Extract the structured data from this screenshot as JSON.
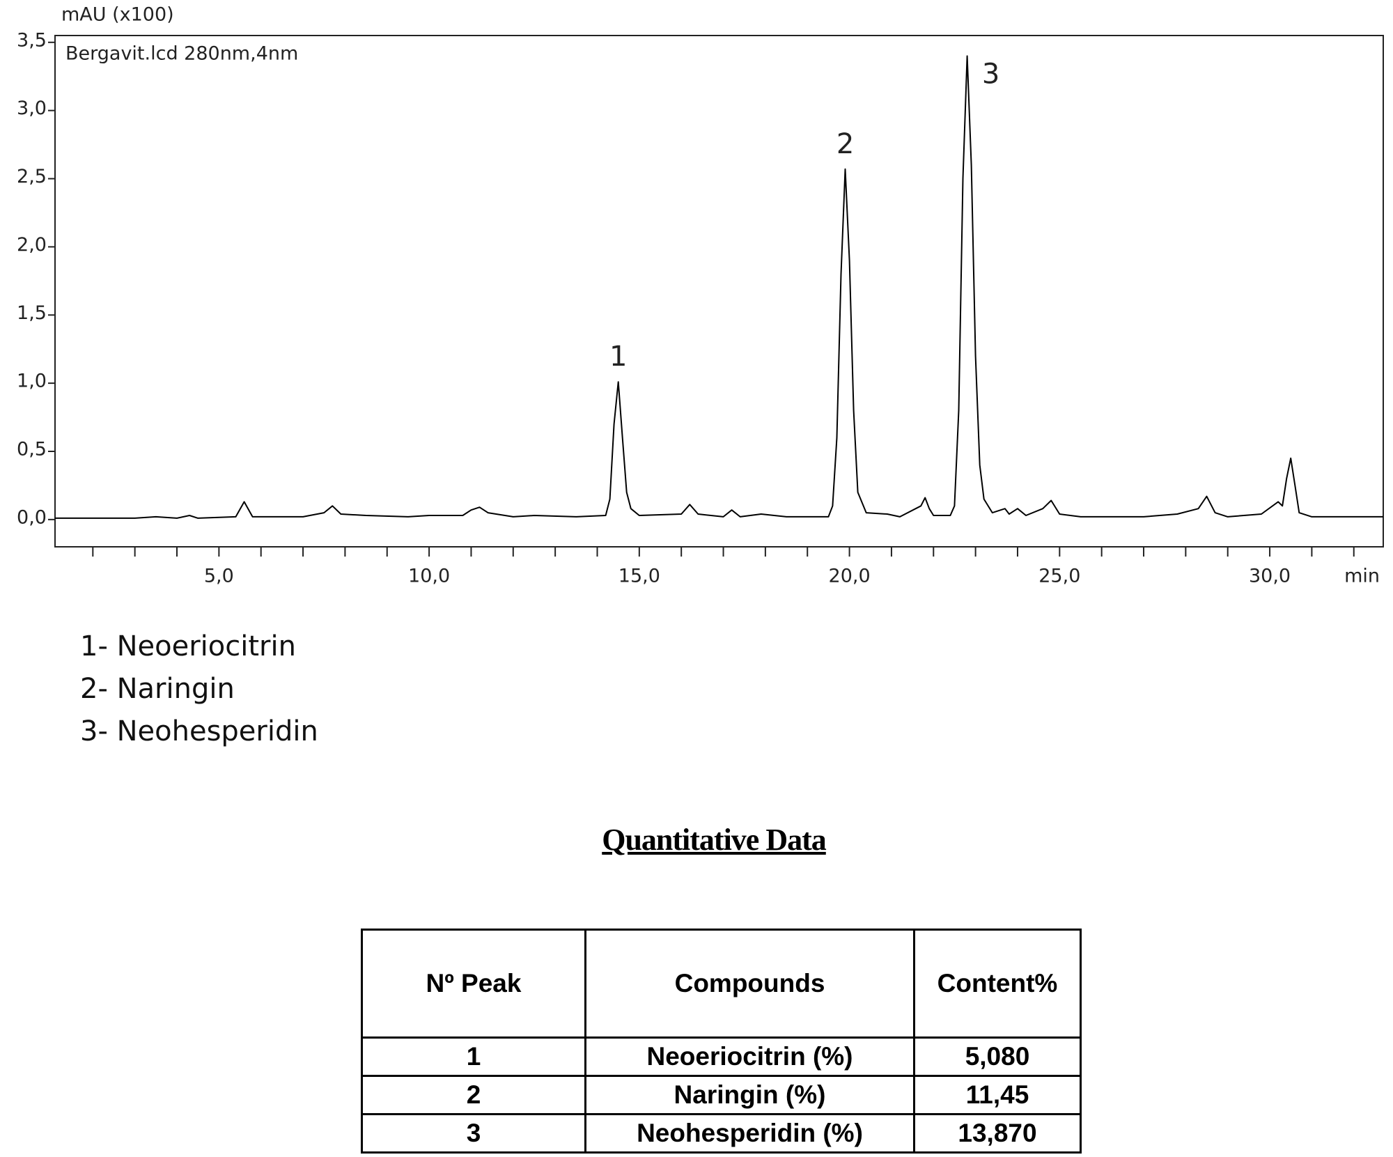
{
  "chart_data": {
    "type": "line",
    "ylabel": "mAU (x100)",
    "xlabel": "min",
    "note": "Bergavit.lcd 280nm,4nm",
    "color": "#000000",
    "x": [
      1.1,
      2.0,
      3.0,
      3.5,
      4.0,
      4.3,
      4.5,
      5.4,
      5.6,
      5.8,
      7.0,
      7.5,
      7.7,
      7.9,
      8.5,
      9.5,
      10.0,
      10.8,
      11.0,
      11.2,
      11.4,
      12.0,
      12.5,
      13.5,
      14.2,
      14.3,
      14.4,
      14.5,
      14.6,
      14.7,
      14.8,
      15.0,
      16.0,
      16.2,
      16.4,
      17.0,
      17.2,
      17.4,
      17.9,
      18.5,
      19.5,
      19.6,
      19.7,
      19.8,
      19.9,
      20.0,
      20.1,
      20.2,
      20.4,
      20.9,
      21.2,
      21.7,
      21.8,
      21.9,
      22.0,
      22.4,
      22.5,
      22.6,
      22.7,
      22.8,
      22.9,
      23.0,
      23.1,
      23.2,
      23.4,
      23.7,
      23.8,
      24.0,
      24.2,
      24.6,
      24.8,
      25.0,
      25.5,
      27.0,
      27.8,
      28.3,
      28.5,
      28.7,
      29.0,
      29.8,
      30.2,
      30.3,
      30.4,
      30.5,
      30.6,
      30.7,
      31.0,
      32.7
    ],
    "values": [
      0.01,
      0.01,
      0.01,
      0.02,
      0.01,
      0.03,
      0.01,
      0.02,
      0.13,
      0.02,
      0.02,
      0.05,
      0.1,
      0.04,
      0.03,
      0.02,
      0.03,
      0.03,
      0.07,
      0.09,
      0.05,
      0.02,
      0.03,
      0.02,
      0.03,
      0.15,
      0.7,
      1.01,
      0.6,
      0.2,
      0.08,
      0.03,
      0.04,
      0.11,
      0.04,
      0.02,
      0.07,
      0.02,
      0.04,
      0.02,
      0.02,
      0.1,
      0.6,
      1.8,
      2.57,
      1.9,
      0.8,
      0.2,
      0.05,
      0.04,
      0.02,
      0.1,
      0.16,
      0.08,
      0.03,
      0.03,
      0.1,
      0.8,
      2.5,
      3.4,
      2.6,
      1.2,
      0.4,
      0.15,
      0.05,
      0.08,
      0.04,
      0.08,
      0.03,
      0.08,
      0.14,
      0.04,
      0.02,
      0.02,
      0.04,
      0.08,
      0.17,
      0.05,
      0.02,
      0.04,
      0.13,
      0.1,
      0.3,
      0.45,
      0.25,
      0.05,
      0.02,
      0.02
    ],
    "xlim": [
      1.1,
      32.7
    ],
    "ylim": [
      -0.2,
      3.55
    ],
    "xticks": [
      {
        "value": 5,
        "label": "5,0"
      },
      {
        "value": 10,
        "label": "10,0"
      },
      {
        "value": 15,
        "label": "15,0"
      },
      {
        "value": 20,
        "label": "20,0"
      },
      {
        "value": 25,
        "label": "25,0"
      },
      {
        "value": 30,
        "label": "30,0"
      }
    ],
    "xminor_ticks": [
      2,
      3,
      4,
      6,
      7,
      8,
      9,
      11,
      12,
      13,
      14,
      16,
      17,
      18,
      19,
      21,
      22,
      23,
      24,
      26,
      27,
      28,
      29,
      31,
      32
    ],
    "yticks": [
      {
        "value": 0,
        "label": "0,0"
      },
      {
        "value": 0.5,
        "label": "0,5"
      },
      {
        "value": 1,
        "label": "1,0"
      },
      {
        "value": 1.5,
        "label": "1,5"
      },
      {
        "value": 2,
        "label": "2,0"
      },
      {
        "value": 2.5,
        "label": "2,5"
      },
      {
        "value": 3,
        "label": "3,0"
      },
      {
        "value": 3.5,
        "label": "3,5"
      }
    ],
    "annotations": [
      {
        "text": "1",
        "x": 14.5
      },
      {
        "text": "2",
        "x": 19.9
      },
      {
        "text": "3",
        "x": 22.8
      }
    ]
  },
  "legend_list": [
    "1- Neoeriocitrin",
    "2- Naringin",
    "3- Neohesperidin"
  ],
  "table": {
    "title": "Quantitative Data",
    "headers": [
      "Nº Peak",
      "Compounds",
      "Content%"
    ],
    "rows": [
      [
        "1",
        "Neoeriocitrin (%)",
        "5,080"
      ],
      [
        "2",
        "Naringin (%)",
        "11,45"
      ],
      [
        "3",
        "Neohesperidin (%)",
        "13,870"
      ]
    ]
  }
}
